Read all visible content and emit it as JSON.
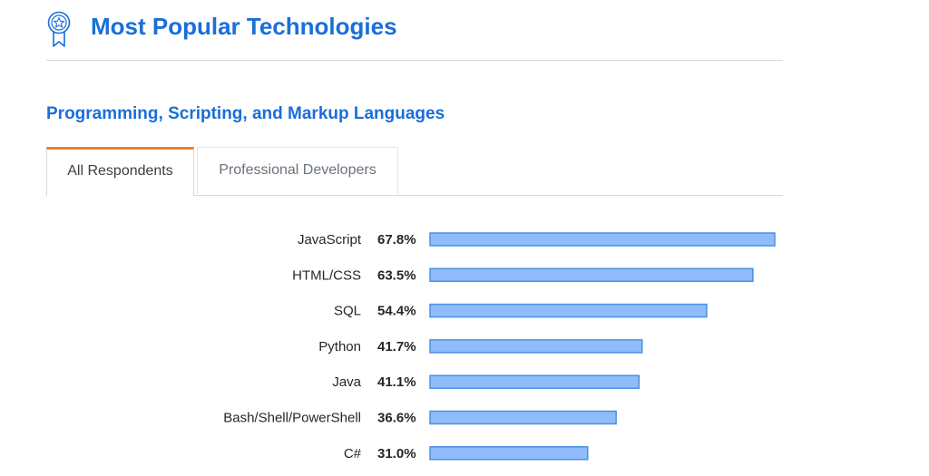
{
  "header": {
    "title": "Most Popular Technologies",
    "icon": "award-ribbon-icon",
    "accent_color": "#1a6ed8"
  },
  "section": {
    "title": "Programming, Scripting, and Markup Languages"
  },
  "tabs": [
    {
      "label": "All Respondents",
      "active": true
    },
    {
      "label": "Professional Developers",
      "active": false
    }
  ],
  "chart_data": {
    "type": "bar",
    "orientation": "horizontal",
    "categories": [
      "JavaScript",
      "HTML/CSS",
      "SQL",
      "Python",
      "Java",
      "Bash/Shell/PowerShell",
      "C#"
    ],
    "values": [
      67.8,
      63.5,
      54.4,
      41.7,
      41.1,
      36.6,
      31.0
    ],
    "value_labels": [
      "67.8%",
      "63.5%",
      "54.4%",
      "41.7%",
      "41.1%",
      "36.6%",
      "31.0%"
    ],
    "unit": "%",
    "title": "",
    "xlabel": "",
    "ylabel": "",
    "xlim": [
      0,
      67.8
    ],
    "grid": false,
    "bar_color": "#8fbcfb",
    "bar_border_color": "#4a90e2",
    "tab_active_border_color": "#f48024"
  }
}
